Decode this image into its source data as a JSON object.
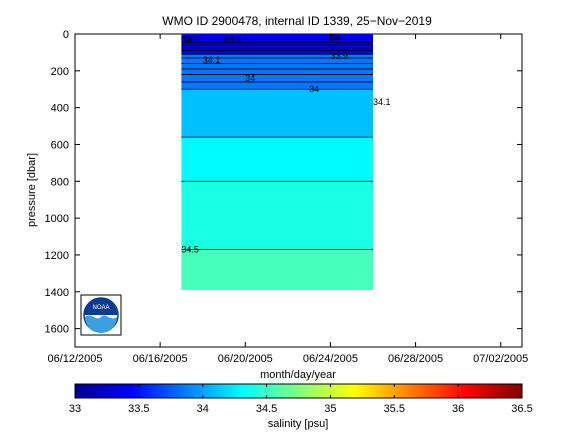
{
  "chart_data": [
    {
      "type": "contour",
      "title": "WMO ID 2900478, internal ID 1339, 25−Nov−2019",
      "xlabel": "month/day/year",
      "ylabel": "pressure [dbar]",
      "xlim": [
        "06/12/2005",
        "07/03/2005"
      ],
      "ylim": [
        1700,
        0
      ],
      "y_reversed": true,
      "x_ticks": [
        "06/12/2005",
        "06/16/2005",
        "06/20/2005",
        "06/24/2005",
        "06/28/2005",
        "07/02/2005"
      ],
      "y_ticks": [
        0,
        200,
        400,
        600,
        800,
        1000,
        1200,
        1400,
        1600
      ],
      "data_extent": {
        "x_start": "06/17/2005",
        "x_end": "06/26/2005",
        "pressure_max": 1390
      },
      "fill_bands": [
        {
          "from": 0,
          "to": 110,
          "salinity": 33.4
        },
        {
          "from": 110,
          "to": 300,
          "salinity": 33.85
        },
        {
          "from": 300,
          "to": 560,
          "salinity": 34.1
        },
        {
          "from": 560,
          "to": 800,
          "salinity": 34.3
        },
        {
          "from": 800,
          "to": 1170,
          "salinity": 34.4
        },
        {
          "from": 1170,
          "to": 1390,
          "salinity": 34.55
        }
      ],
      "contour_labels": [
        {
          "text": "34",
          "date": "06/17/2005",
          "pressure": 30
        },
        {
          "text": "33.9",
          "date": "06/17/2005",
          "pressure": 30
        },
        {
          "text": "34.1",
          "date": "06/19/2005",
          "pressure": 25
        },
        {
          "text": "34",
          "date": "06/24/2005",
          "pressure": 20
        },
        {
          "text": "33.9",
          "date": "06/24/2005",
          "pressure": 120
        },
        {
          "text": "34.1",
          "date": "06/18/2005",
          "pressure": 140
        },
        {
          "text": "34",
          "date": "06/20/2005",
          "pressure": 240
        },
        {
          "text": "34",
          "date": "06/23/2005",
          "pressure": 300
        },
        {
          "text": "34.1",
          "date": "06/26/2005",
          "pressure": 370
        },
        {
          "text": "34.5",
          "date": "06/17/2005",
          "pressure": 1170
        }
      ]
    },
    {
      "type": "colorbar",
      "xlabel": "salinity [psu]",
      "range": [
        33,
        36.5
      ],
      "ticks": [
        "33",
        "33.5",
        "34",
        "34.5",
        "35",
        "35.5",
        "36",
        "36.5"
      ],
      "colormap": "jet"
    }
  ],
  "logo": {
    "text": "NOAA"
  }
}
